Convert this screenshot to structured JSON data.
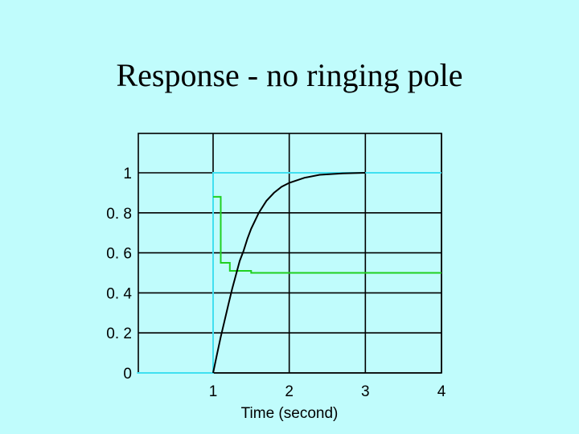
{
  "slide": {
    "title": "Response - no ringing pole"
  },
  "chart_data": {
    "type": "line",
    "title": "",
    "xlabel": "Time (second)",
    "ylabel": "",
    "xlim": [
      0,
      4
    ],
    "ylim": [
      0,
      1
    ],
    "x_ticks": [
      1,
      2,
      3,
      4
    ],
    "y_ticks": [
      0,
      0.2,
      0.4,
      0.6,
      0.8,
      1
    ],
    "y_tick_labels": [
      "0",
      "0. 2",
      "0. 4",
      "0. 6",
      "0. 8",
      "1"
    ],
    "grid": true,
    "series": [
      {
        "color": "#40e0f0",
        "interp": "linear",
        "points": [
          [
            0,
            0
          ],
          [
            1,
            0
          ],
          [
            1,
            1
          ],
          [
            4,
            1
          ]
        ]
      },
      {
        "color": "#20d020",
        "interp": "step",
        "points": [
          [
            1,
            0.88
          ],
          [
            1.1,
            0.88
          ],
          [
            1.1,
            0.55
          ],
          [
            1.22,
            0.55
          ],
          [
            1.22,
            0.51
          ],
          [
            1.5,
            0.51
          ],
          [
            1.5,
            0.5
          ],
          [
            4,
            0.5
          ]
        ]
      },
      {
        "color": "#000000",
        "interp": "linear",
        "points": [
          [
            1,
            0
          ],
          [
            1.05,
            0.09
          ],
          [
            1.1,
            0.18
          ],
          [
            1.15,
            0.26
          ],
          [
            1.2,
            0.34
          ],
          [
            1.25,
            0.42
          ],
          [
            1.3,
            0.49
          ],
          [
            1.35,
            0.56
          ],
          [
            1.4,
            0.61
          ],
          [
            1.45,
            0.67
          ],
          [
            1.5,
            0.72
          ],
          [
            1.6,
            0.8
          ],
          [
            1.7,
            0.86
          ],
          [
            1.8,
            0.9
          ],
          [
            1.9,
            0.93
          ],
          [
            2.0,
            0.95
          ],
          [
            2.2,
            0.975
          ],
          [
            2.4,
            0.99
          ],
          [
            2.7,
            0.997
          ],
          [
            3.0,
            1.0
          ]
        ]
      }
    ]
  }
}
